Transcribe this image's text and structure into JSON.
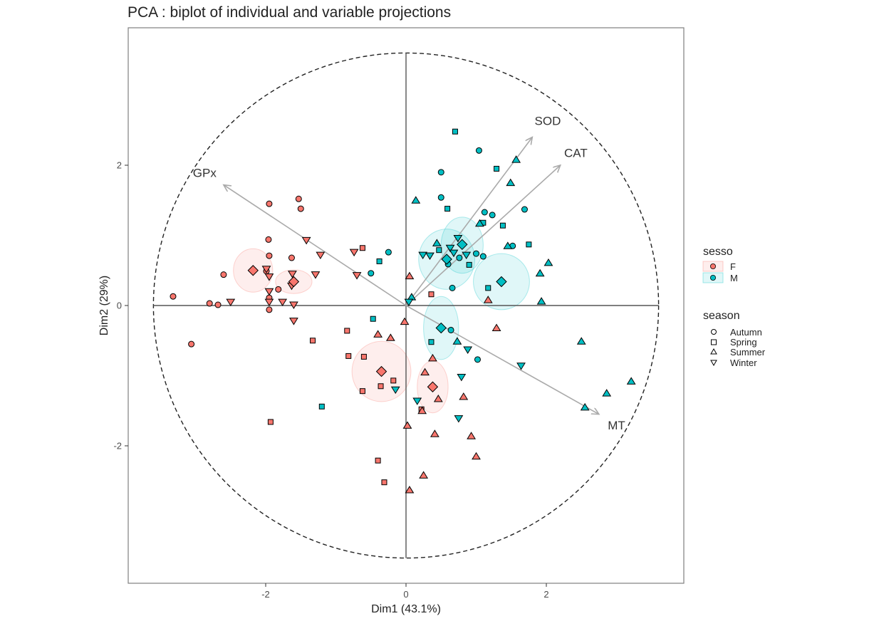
{
  "chart_data": {
    "type": "scatter",
    "title": "PCA : biplot of individual and variable projections",
    "xlabel": "Dim1 (43.1%)",
    "ylabel": "Dim2 (29%)",
    "xlim": [
      -3.97,
      3.97
    ],
    "ylim": [
      -3.97,
      3.97
    ],
    "x_ticks": [
      -2,
      0,
      2
    ],
    "y_ticks": [
      -2,
      0,
      2
    ],
    "x_tick_labels": [
      "-2",
      "0",
      "2"
    ],
    "y_tick_labels": [
      "-2",
      "0",
      "2"
    ],
    "correlation_circle_radius": 3.6,
    "grid": false,
    "colors": {
      "F": "#F8766D",
      "M": "#00BFC4",
      "arrow": "#aaaaaa",
      "axis_line": "#555555",
      "border": "#7f7f7f"
    },
    "variables": [
      {
        "name": "SOD",
        "x": 1.8,
        "y": 2.4,
        "label_x": 2.02,
        "label_y": 2.62
      },
      {
        "name": "CAT",
        "x": 2.2,
        "y": 2.0,
        "label_x": 2.42,
        "label_y": 2.16
      },
      {
        "name": "GPx",
        "x": -2.6,
        "y": 1.72,
        "label_x": -2.87,
        "label_y": 1.88
      },
      {
        "name": "MT",
        "x": 2.75,
        "y": -1.55,
        "label_x": 3.0,
        "label_y": -1.72
      }
    ],
    "legend": [
      {
        "title": "sesso",
        "placement": "right",
        "entries": [
          "F",
          "M"
        ]
      },
      {
        "title": "season",
        "placement": "right",
        "entries": [
          "Autumn",
          "Spring",
          "Summer",
          "Winter"
        ]
      }
    ],
    "group_ellipses": [
      {
        "sex": "F",
        "season": "Autumn",
        "cx": -2.18,
        "cy": 0.5,
        "rx": 0.28,
        "ry": 0.31
      },
      {
        "sex": "F",
        "season": "Winter",
        "cx": -1.6,
        "cy": 0.34,
        "rx": 0.26,
        "ry": 0.17
      },
      {
        "sex": "F",
        "season": "Spring",
        "cx": -0.35,
        "cy": -0.94,
        "rx": 0.42,
        "ry": 0.43
      },
      {
        "sex": "F",
        "season": "Summer",
        "cx": 0.38,
        "cy": -1.16,
        "rx": 0.22,
        "ry": 0.37
      },
      {
        "sex": "M",
        "season": "Spring",
        "cx": 0.58,
        "cy": 0.66,
        "rx": 0.4,
        "ry": 0.43
      },
      {
        "sex": "M",
        "season": "Winter",
        "cx": 0.8,
        "cy": 0.86,
        "rx": 0.3,
        "ry": 0.4
      },
      {
        "sex": "M",
        "season": "Summer",
        "cx": 1.36,
        "cy": 0.34,
        "rx": 0.4,
        "ry": 0.4
      },
      {
        "sex": "M",
        "season": "Autumn",
        "cx": 0.5,
        "cy": -0.32,
        "rx": 0.25,
        "ry": 0.45
      }
    ],
    "group_means": [
      {
        "sex": "F",
        "season": "Autumn",
        "x": -2.18,
        "y": 0.5
      },
      {
        "sex": "F",
        "season": "Winter",
        "x": -1.6,
        "y": 0.34
      },
      {
        "sex": "F",
        "season": "Spring",
        "x": -0.35,
        "y": -0.94
      },
      {
        "sex": "F",
        "season": "Summer",
        "x": 0.38,
        "y": -1.16
      },
      {
        "sex": "M",
        "season": "Spring",
        "x": 0.58,
        "y": 0.66
      },
      {
        "sex": "M",
        "season": "Winter",
        "x": 0.8,
        "y": 0.87
      },
      {
        "sex": "M",
        "season": "Summer",
        "x": 1.36,
        "y": 0.34
      },
      {
        "sex": "M",
        "season": "Autumn",
        "x": 0.5,
        "y": -0.32
      }
    ],
    "series": [
      {
        "sex": "F",
        "season": "Autumn",
        "points": [
          [
            -3.32,
            0.13
          ],
          [
            -3.06,
            -0.55
          ],
          [
            -2.8,
            0.03
          ],
          [
            -2.68,
            0.01
          ],
          [
            -2.6,
            0.44
          ],
          [
            -1.96,
            0.94
          ],
          [
            -1.95,
            0.71
          ],
          [
            -1.95,
            1.45
          ],
          [
            -1.95,
            0.11
          ],
          [
            -1.95,
            -0.06
          ],
          [
            -1.99,
            0.49
          ],
          [
            -1.82,
            0.23
          ],
          [
            -1.63,
            0.68
          ],
          [
            -1.53,
            1.52
          ],
          [
            -1.5,
            1.38
          ]
        ]
      },
      {
        "sex": "F",
        "season": "Spring",
        "points": [
          [
            -1.93,
            -1.66
          ],
          [
            -1.33,
            -0.5
          ],
          [
            -0.84,
            -0.36
          ],
          [
            -0.82,
            -0.72
          ],
          [
            -0.62,
            0.82
          ],
          [
            -0.62,
            -1.22
          ],
          [
            -0.6,
            -0.73
          ],
          [
            -0.4,
            -2.21
          ],
          [
            -0.31,
            -2.52
          ],
          [
            -0.18,
            -1.07
          ],
          [
            -0.36,
            -1.15
          ],
          [
            0.36,
            0.16
          ],
          [
            0.22,
            -1.48
          ]
        ]
      },
      {
        "sex": "F",
        "season": "Summer",
        "points": [
          [
            -0.22,
            -0.46
          ],
          [
            -0.4,
            -0.41
          ],
          [
            -0.02,
            -0.23
          ],
          [
            0.05,
            0.42
          ],
          [
            0.02,
            -1.71
          ],
          [
            0.05,
            -2.63
          ],
          [
            0.38,
            -0.75
          ],
          [
            0.27,
            -0.95
          ],
          [
            0.25,
            -2.42
          ],
          [
            0.23,
            -1.5
          ],
          [
            0.41,
            -1.83
          ],
          [
            0.46,
            -1.33
          ],
          [
            0.82,
            -1.3
          ],
          [
            0.93,
            -1.86
          ],
          [
            1.0,
            -2.15
          ],
          [
            1.29,
            -0.32
          ],
          [
            1.17,
            0.08
          ]
        ]
      },
      {
        "sex": "F",
        "season": "Winter",
        "points": [
          [
            -2.5,
            0.05
          ],
          [
            -1.99,
            0.52
          ],
          [
            -1.95,
            0.2
          ],
          [
            -1.95,
            0.41
          ],
          [
            -1.95,
            0.05
          ],
          [
            -1.76,
            0.05
          ],
          [
            -1.62,
            0.45
          ],
          [
            -1.63,
            0.28
          ],
          [
            -1.6,
            -0.22
          ],
          [
            -1.6,
            0.01
          ],
          [
            -1.42,
            0.93
          ],
          [
            -1.29,
            0.44
          ],
          [
            -1.22,
            0.72
          ],
          [
            -0.74,
            0.76
          ],
          [
            -0.7,
            0.43
          ]
        ]
      },
      {
        "sex": "M",
        "season": "Autumn",
        "points": [
          [
            -0.5,
            0.46
          ],
          [
            -0.25,
            0.76
          ],
          [
            0.5,
            1.9
          ],
          [
            0.5,
            1.54
          ],
          [
            0.6,
            0.59
          ],
          [
            0.64,
            -0.35
          ],
          [
            0.66,
            0.25
          ],
          [
            0.76,
            0.68
          ],
          [
            1.04,
            2.21
          ],
          [
            1.0,
            0.74
          ],
          [
            1.12,
            1.33
          ],
          [
            1.23,
            1.29
          ],
          [
            1.1,
            0.7
          ],
          [
            1.52,
            0.85
          ],
          [
            1.69,
            1.37
          ],
          [
            1.02,
            -0.77
          ]
        ]
      },
      {
        "sex": "M",
        "season": "Spring",
        "points": [
          [
            -1.2,
            -1.44
          ],
          [
            -0.47,
            -0.19
          ],
          [
            -0.38,
            0.63
          ],
          [
            0.36,
            -0.52
          ],
          [
            0.47,
            0.79
          ],
          [
            0.59,
            1.38
          ],
          [
            0.9,
            0.58
          ],
          [
            0.7,
            2.48
          ],
          [
            1.29,
            1.95
          ],
          [
            1.38,
            1.14
          ],
          [
            1.75,
            0.87
          ],
          [
            1.17,
            0.25
          ],
          [
            1.1,
            1.18
          ]
        ]
      },
      {
        "sex": "M",
        "season": "Summer",
        "points": [
          [
            0.14,
            1.5
          ],
          [
            0.08,
            0.12
          ],
          [
            0.44,
            0.89
          ],
          [
            0.73,
            -0.51
          ],
          [
            1.05,
            1.17
          ],
          [
            1.49,
            1.75
          ],
          [
            1.57,
            2.08
          ],
          [
            1.45,
            0.85
          ],
          [
            1.91,
            0.46
          ],
          [
            2.03,
            0.61
          ],
          [
            1.93,
            0.06
          ],
          [
            2.5,
            -0.51
          ],
          [
            2.55,
            -1.45
          ],
          [
            2.86,
            -1.25
          ],
          [
            3.21,
            -1.08
          ]
        ]
      },
      {
        "sex": "M",
        "season": "Winter",
        "points": [
          [
            0.04,
            0.05
          ],
          [
            0.24,
            0.72
          ],
          [
            0.34,
            0.71
          ],
          [
            0.63,
            0.82
          ],
          [
            0.74,
            0.96
          ],
          [
            0.86,
            0.72
          ],
          [
            0.88,
            -0.63
          ],
          [
            0.79,
            -1.02
          ],
          [
            0.75,
            -1.61
          ],
          [
            1.64,
            -0.86
          ],
          [
            -0.15,
            -1.2
          ],
          [
            0.16,
            -1.36
          ],
          [
            0.68,
            0.75
          ]
        ]
      }
    ]
  }
}
